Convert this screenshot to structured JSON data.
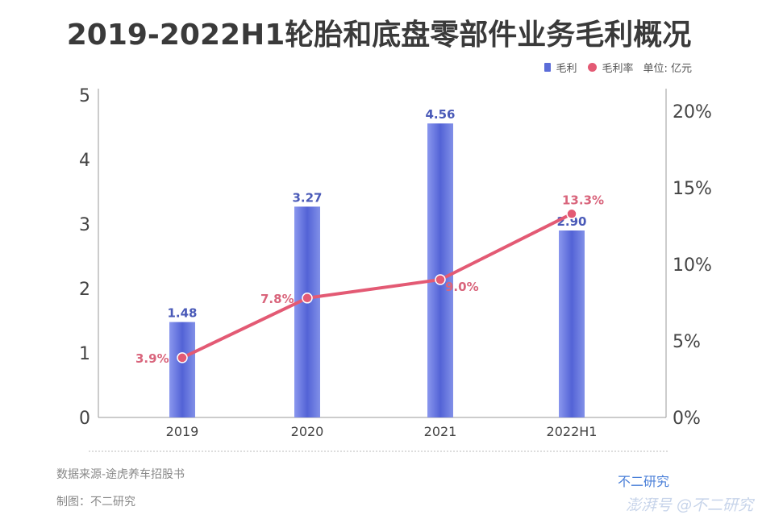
{
  "chart_data": {
    "type": "bar+line",
    "title": "2019-2022H1轮胎和底盘零部件业务毛利概况",
    "categories": [
      "2019",
      "2020",
      "2021",
      "2022H1"
    ],
    "series": [
      {
        "name": "毛利",
        "type": "bar",
        "axis": "left",
        "values": [
          1.48,
          3.27,
          4.56,
          2.9
        ],
        "labels": [
          "1.48",
          "3.27",
          "4.56",
          "2.90"
        ],
        "color": "#5b6cd8"
      },
      {
        "name": "毛利率",
        "type": "line",
        "axis": "right",
        "values": [
          3.9,
          7.8,
          9.0,
          13.3
        ],
        "labels": [
          "3.9%",
          "7.8%",
          "9.0%",
          "13.3%"
        ],
        "color": "#e35a74"
      }
    ],
    "unit": "单位: 亿元",
    "left_axis": {
      "ylim": [
        0,
        5
      ],
      "ticks": [
        "0",
        "1",
        "2",
        "3",
        "4",
        "5"
      ]
    },
    "right_axis": {
      "ylim": [
        0,
        20
      ],
      "ticks": [
        "0%",
        "5%",
        "10%",
        "15%",
        "20%"
      ]
    },
    "grid": false,
    "legend": "top-right"
  },
  "footer": {
    "source": "数据来源-途虎养车招股书",
    "made_by": "制图：不二研究",
    "brand": "不二研究",
    "watermark": "澎湃号 @不二研究"
  }
}
